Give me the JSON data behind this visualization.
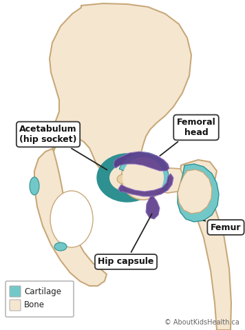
{
  "background_color": "#ffffff",
  "bone_color": "#f5e6d0",
  "bone_edge_color": "#c8a878",
  "cartilage_color": "#72c8c8",
  "cartilage_dark_color": "#2e9090",
  "cartilage_edge_color": "#2e9090",
  "capsule_color": "#8060b0",
  "capsule_dark_color": "#5a3a8a",
  "capsule_light_color": "#9070c0",
  "label_text_color": "#111111",
  "legend_cartilage_color": "#72c8c8",
  "legend_bone_color": "#f5e6d0",
  "legend_edge": "#aaaaaa",
  "copyright_text": "© AboutKidsHealth.ca",
  "labels": {
    "acetabulum": "Acetabulum\n(hip socket)",
    "femoral_head": "Femoral\nhead",
    "hip_capsule": "Hip capsule",
    "femur": "Femur"
  }
}
